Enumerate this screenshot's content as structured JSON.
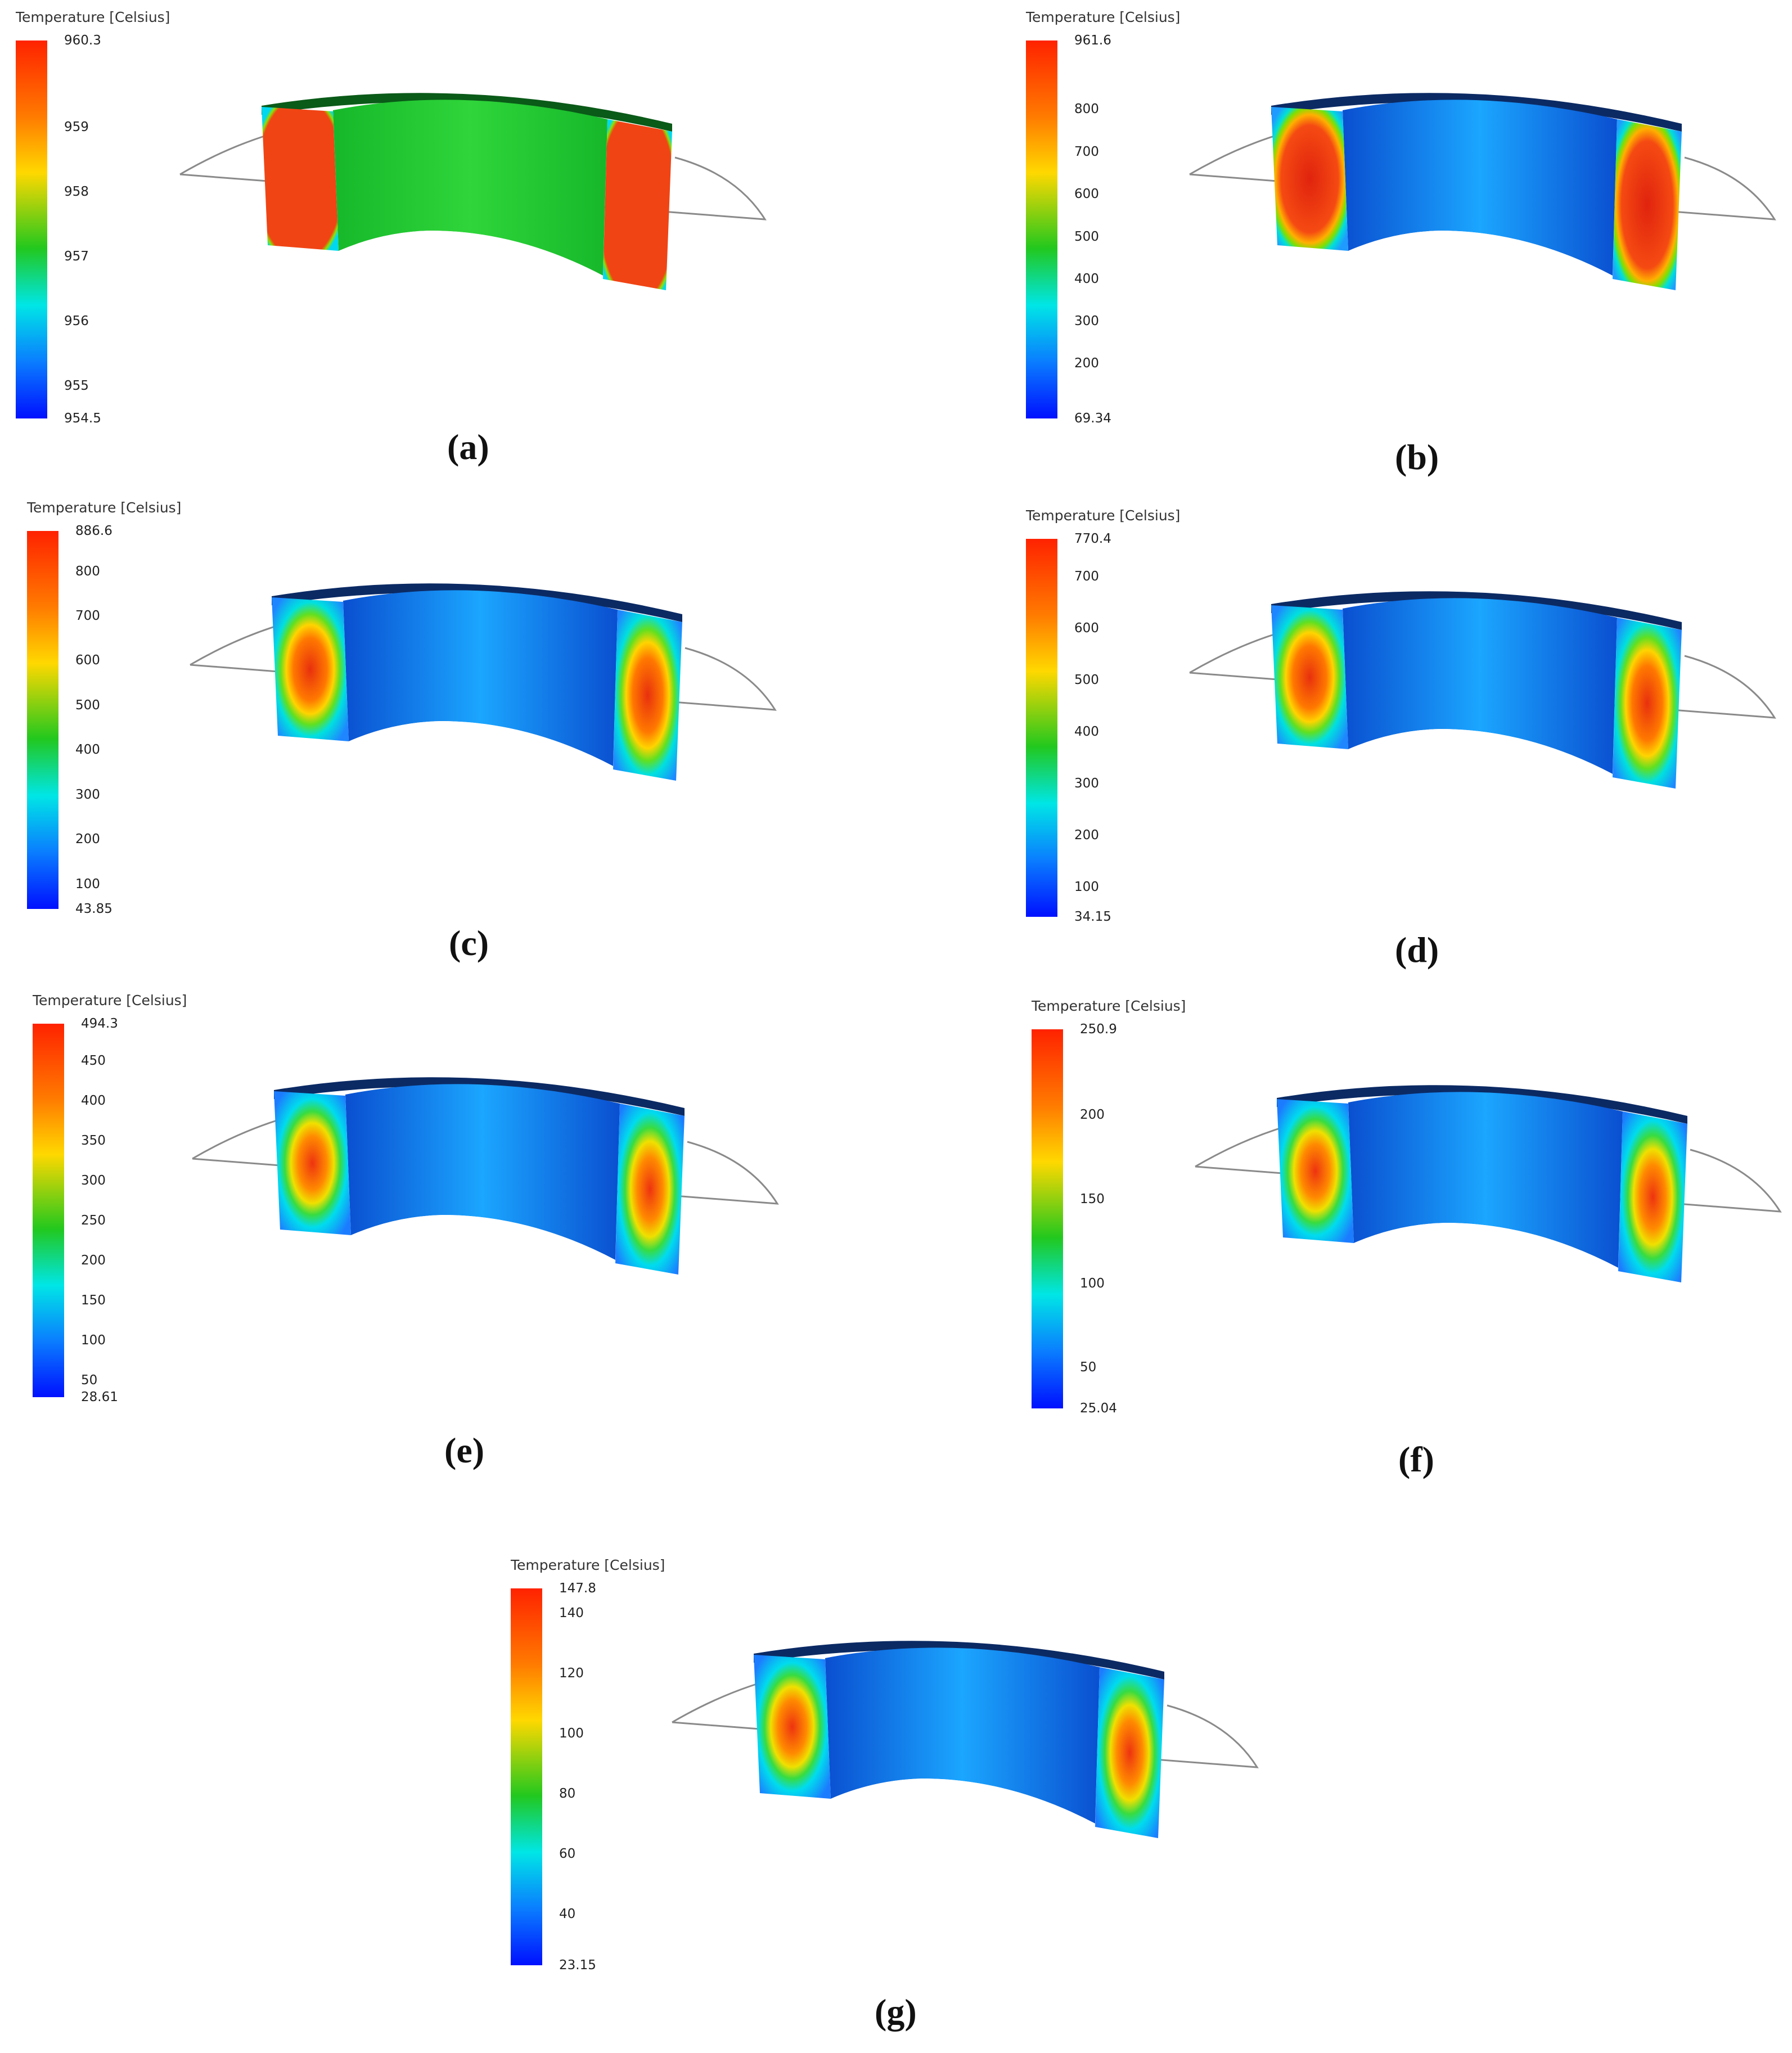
{
  "figure": {
    "panels": [
      {
        "id": "a",
        "caption": "(a)",
        "legend_title": "Temperature [Celsius]",
        "max": "960.3",
        "min": "954.5",
        "ticks": [
          "959",
          "958",
          "957",
          "956",
          "955"
        ],
        "face_style": "uniform"
      },
      {
        "id": "b",
        "caption": "(b)",
        "legend_title": "Temperature [Celsius]",
        "max": "961.6",
        "min": "69.34",
        "ticks": [
          "800",
          "700",
          "600",
          "500",
          "400",
          "300",
          "200"
        ],
        "face_style": "hot"
      },
      {
        "id": "c",
        "caption": "(c)",
        "legend_title": "Temperature [Celsius]",
        "max": "886.6",
        "min": "43.85",
        "ticks": [
          "800",
          "700",
          "600",
          "500",
          "400",
          "300",
          "200",
          "100"
        ],
        "face_style": "warm"
      },
      {
        "id": "d",
        "caption": "(d)",
        "legend_title": "Temperature [Celsius]",
        "max": "770.4",
        "min": "34.15",
        "ticks": [
          "700",
          "600",
          "500",
          "400",
          "300",
          "200",
          "100"
        ],
        "face_style": "warm"
      },
      {
        "id": "e",
        "caption": "(e)",
        "legend_title": "Temperature [Celsius]",
        "max": "494.3",
        "min": "28.61",
        "ticks": [
          "450",
          "400",
          "350",
          "300",
          "250",
          "200",
          "150",
          "100",
          "50"
        ],
        "face_style": "cool"
      },
      {
        "id": "f",
        "caption": "(f)",
        "legend_title": "Temperature [Celsius]",
        "max": "250.9",
        "min": "25.04",
        "ticks": [
          "200",
          "150",
          "100",
          "50"
        ],
        "face_style": "cool"
      },
      {
        "id": "g",
        "caption": "(g)",
        "legend_title": "Temperature [Celsius]",
        "max": "147.8",
        "min": "23.15",
        "ticks": [
          "140",
          "120",
          "100",
          "80",
          "60",
          "40"
        ],
        "face_style": "cool"
      }
    ]
  }
}
